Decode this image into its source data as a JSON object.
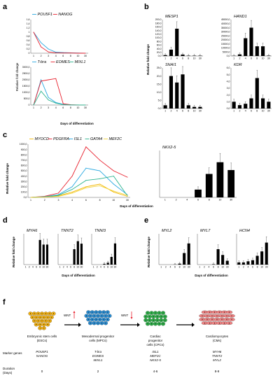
{
  "panels": {
    "a": {
      "label": "a",
      "ylabel": "Relative fold change",
      "xlabel": "Days of differentiation"
    },
    "b": {
      "label": "b",
      "ylabel": "Relative fold change"
    },
    "c": {
      "label": "c",
      "ylabel": "Relative fold change",
      "xlabel": "Days of differentiation"
    },
    "d": {
      "label": "d",
      "ylabel": "Relative fold change",
      "xlabel": "Days of differentiation"
    },
    "e": {
      "label": "e",
      "ylabel": "Relative fold change",
      "xlabel": "Days of differentiation"
    },
    "f": {
      "label": "f"
    }
  },
  "colors": {
    "POU5F1": "#29a8e0",
    "NANOG": "#e8212e",
    "T-bra": "#29a8e0",
    "EOMES": "#e8212e",
    "MIXL1": "#2bb38e",
    "MYOCD": "#f2b705",
    "PDGFRA": "#e8212e",
    "ISL1": "#29a8e0",
    "GATA4": "#2bb38e",
    "MEF2C": "#f2d33a",
    "bar": "#000000",
    "esc": "#f5b20f",
    "mpc": "#2a8fd6",
    "cpc": "#2fb24a",
    "cm": "#f08080"
  },
  "chart_data": [
    {
      "id": "a1",
      "type": "line",
      "x": [
        1,
        2,
        3,
        4,
        6,
        8,
        10,
        30
      ],
      "ylim": [
        0,
        1.6
      ],
      "yticks": [
        "0",
        "0,2",
        "0,4",
        "0,6",
        "0,8",
        "1",
        "1,2",
        "1,4",
        "1,6"
      ],
      "series": [
        {
          "name": "POU5F1",
          "values": [
            1,
            0.5,
            0.2,
            0.05,
            0.03,
            0.02,
            0.01,
            0
          ]
        },
        {
          "name": "NANOG",
          "values": [
            1,
            0.3,
            0.06,
            0.02,
            0.01,
            0.01,
            0,
            0
          ]
        }
      ]
    },
    {
      "id": "a2",
      "type": "line",
      "x": [
        1,
        2,
        3,
        4,
        6,
        8,
        10,
        30
      ],
      "ylim": [
        0,
        3000
      ],
      "yticks": [
        "0",
        "500,0",
        "1000,0",
        "1500,0",
        "2000,0",
        "2500,0",
        "3000,0"
      ],
      "series": [
        {
          "name": "T-bra",
          "values": [
            0,
            2000,
            600,
            200,
            50,
            10,
            5,
            0
          ]
        },
        {
          "name": "EOMES",
          "values": [
            0,
            1900,
            2000,
            2100,
            100,
            20,
            5,
            0
          ]
        },
        {
          "name": "MIXL1",
          "values": [
            0,
            1100,
            400,
            150,
            20,
            10,
            5,
            0
          ]
        }
      ]
    },
    {
      "id": "b1",
      "type": "bar",
      "title": "MESP1",
      "categories": [
        "1",
        "2",
        "4",
        "6",
        "8",
        "10",
        "30"
      ],
      "values": [
        5,
        35,
        150,
        8,
        2,
        2,
        2
      ],
      "ylim": [
        0,
        200
      ],
      "yticks": [
        "0,0",
        "20,0",
        "40,0",
        "60,0",
        "80,0",
        "100,0",
        "120,0",
        "140,0",
        "160,0",
        "180,0",
        "200,0"
      ]
    },
    {
      "id": "b2",
      "type": "bar",
      "title": "HAND1",
      "categories": [
        "1",
        "2",
        "4",
        "6",
        "8",
        "10",
        "30"
      ],
      "values": [
        300,
        2000,
        22000,
        35000,
        12000,
        12000,
        500
      ],
      "ylim": [
        0,
        45000
      ],
      "yticks": [
        "0,0",
        "5000,0",
        "10000,0",
        "15000,0",
        "20000,0",
        "25000,0",
        "30000,0",
        "35000,0",
        "40000,0",
        "45000,0"
      ]
    },
    {
      "id": "b3",
      "type": "bar",
      "title": "SNAI1",
      "categories": [
        "1",
        "2",
        "4",
        "6",
        "8",
        "10",
        "30"
      ],
      "values": [
        2,
        20,
        16,
        21,
        2,
        1,
        1
      ],
      "ylim": [
        0,
        25
      ],
      "yticks": [
        "0,0",
        "5,0",
        "10,0",
        "15,0",
        "20,0",
        "25,0"
      ]
    },
    {
      "id": "b4",
      "type": "bar",
      "title": "KDR",
      "categories": [
        "1",
        "2",
        "4",
        "6",
        "8",
        "10",
        "30"
      ],
      "values": [
        1,
        0.5,
        0.7,
        1.5,
        4.5,
        1.5,
        1
      ],
      "ylim": [
        0,
        6
      ],
      "yticks": [
        "0,0",
        "1,0",
        "2,0",
        "3,0",
        "4,0",
        "5,0",
        "6,0"
      ]
    },
    {
      "id": "c1",
      "type": "line",
      "x": [
        1,
        2,
        3,
        4,
        6,
        8,
        10,
        30
      ],
      "ylim": [
        0,
        1000
      ],
      "yticks": [
        "0,0",
        "100,0",
        "200,0",
        "300,0",
        "400,0",
        "500,0",
        "600,0",
        "700,0",
        "800,0",
        "900,0",
        "1000,0"
      ],
      "series": [
        {
          "name": "MYOCD",
          "values": [
            0,
            10,
            30,
            100,
            200,
            250,
            100,
            20
          ]
        },
        {
          "name": "PDGFRA",
          "values": [
            0,
            20,
            80,
            400,
            950,
            700,
            500,
            380
          ]
        },
        {
          "name": "ISL1",
          "values": [
            0,
            15,
            50,
            200,
            550,
            500,
            250,
            50
          ]
        },
        {
          "name": "GATA4",
          "values": [
            0,
            10,
            40,
            150,
            320,
            350,
            400,
            30
          ]
        },
        {
          "name": "MEF2C",
          "values": [
            0,
            5,
            20,
            80,
            180,
            220,
            120,
            40
          ]
        }
      ]
    },
    {
      "id": "c2",
      "type": "bar",
      "title": "NKX2-5",
      "categories": [
        "1",
        "2",
        "4",
        "6",
        "8",
        "10",
        "30"
      ],
      "values": [
        0,
        0,
        0,
        1000,
        3000,
        4500,
        3500
      ],
      "ylim": [
        0,
        6000
      ]
    },
    {
      "id": "d1",
      "type": "bar",
      "title": "MYH6",
      "categories": [
        "1",
        "2",
        "4",
        "6",
        "8",
        "10",
        "30"
      ],
      "values": [
        0,
        0,
        0,
        0,
        160,
        130,
        130
      ],
      "ylim": [
        0,
        200
      ]
    },
    {
      "id": "d2",
      "type": "bar",
      "title": "TNNT2",
      "categories": [
        "1",
        "2",
        "4",
        "6",
        "8",
        "10",
        "30"
      ],
      "values": [
        0,
        0,
        0,
        0,
        250,
        380,
        340
      ],
      "ylim": [
        0,
        500
      ]
    },
    {
      "id": "d3",
      "type": "bar",
      "title": "TNNI3",
      "categories": [
        "1",
        "2",
        "4",
        "6",
        "8",
        "10",
        "30"
      ],
      "values": [
        0,
        0,
        0,
        2,
        5,
        20,
        55
      ],
      "ylim": [
        0,
        80
      ]
    },
    {
      "id": "e1",
      "type": "bar",
      "title": "MYL2",
      "categories": [
        "1",
        "2",
        "4",
        "6",
        "8",
        "10",
        "30"
      ],
      "values": [
        0,
        0,
        0,
        1,
        5,
        60,
        110
      ],
      "ylim": [
        0,
        160
      ]
    },
    {
      "id": "e2",
      "type": "bar",
      "title": "MYL7",
      "categories": [
        "1",
        "2",
        "4",
        "6",
        "8",
        "10",
        "30"
      ],
      "values": [
        0,
        0,
        0,
        2,
        80,
        50,
        20
      ],
      "ylim": [
        0,
        160
      ]
    },
    {
      "id": "e3",
      "type": "bar",
      "title": "HCN4",
      "categories": [
        "1",
        "2",
        "4",
        "6",
        "8",
        "10",
        "30"
      ],
      "values": [
        1,
        1,
        1.5,
        2,
        4,
        6,
        10
      ],
      "ylim": [
        0,
        14
      ]
    }
  ],
  "schema": {
    "signal": "WNT",
    "stages": [
      {
        "name": "Embryonic stem cells",
        "abbr": "(ESCs)",
        "markers": [
          "POU5F1",
          "NANOG"
        ],
        "duration": "0"
      },
      {
        "name": "Mesodermal progenitor",
        "name2": "cells (MPCs)",
        "markers": [
          "T-bra",
          "EOMES",
          "MIXL1"
        ],
        "duration": "2"
      },
      {
        "name": "Cardiac",
        "name2": "progenitor",
        "name3": "cells (CPCs)",
        "markers": [
          "ISL1",
          "MEF2C",
          "NKX2-5"
        ],
        "duration": "4-6"
      },
      {
        "name": "Cardiomyocytes",
        "abbr": "(CMs)",
        "markers": [
          "MYH6",
          "TNNT2",
          "MYL2"
        ],
        "duration": "8-9"
      }
    ],
    "marker_label": "Marker genes",
    "duration_label": "Duration",
    "duration_unit": "(Days)"
  }
}
